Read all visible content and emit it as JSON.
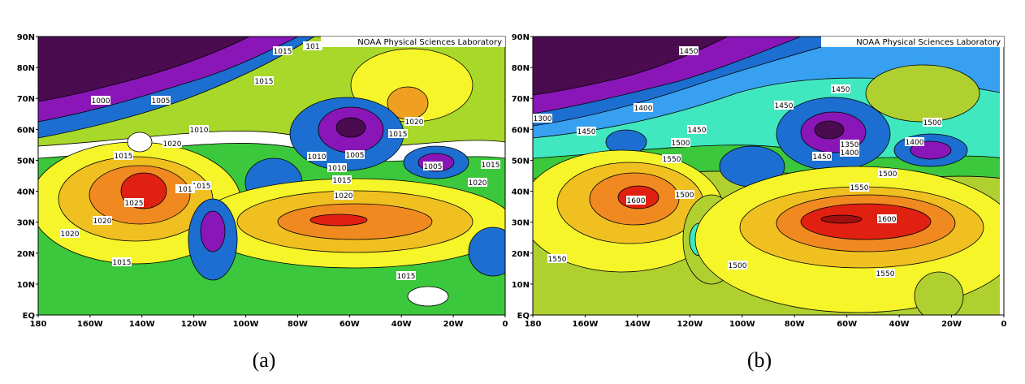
{
  "panels": [
    {
      "caption": "(a)",
      "credit": "NOAA Physical Sciences Laboratory",
      "lat_labels": [
        "90N",
        "80N",
        "70N",
        "60N",
        "50N",
        "40N",
        "30N",
        "20N",
        "10N",
        "EQ"
      ],
      "lon_labels": [
        "180",
        "160W",
        "140W",
        "120W",
        "100W",
        "80W",
        "60W",
        "40W",
        "20W",
        "0"
      ],
      "contour_labels": [
        "1015",
        "101",
        "1015",
        "1000",
        "1005",
        "1020",
        "1010",
        "1015",
        "1015",
        "1020",
        "1010",
        "1005",
        "1010",
        "1005",
        "1015",
        "1015",
        "1015",
        "101",
        "1020",
        "1020",
        "1025",
        "1020",
        "1020",
        "1015",
        "1015"
      ]
    },
    {
      "caption": "(b)",
      "credit": "NOAA Physical Sciences Laboratory",
      "lat_labels": [
        "90N",
        "80N",
        "70N",
        "60N",
        "50N",
        "40N",
        "30N",
        "20N",
        "10N",
        "EQ"
      ],
      "lon_labels": [
        "180",
        "160W",
        "140W",
        "120W",
        "100W",
        "80W",
        "60W",
        "40W",
        "20W",
        "0"
      ],
      "contour_labels": [
        "1450",
        "1450",
        "1400",
        "1450",
        "1300",
        "1450",
        "1450",
        "1500",
        "1500",
        "1350",
        "1400",
        "1400",
        "1550",
        "1450",
        "1500",
        "1550",
        "1600",
        "1500",
        "1600",
        "1550",
        "1500",
        "1550"
      ]
    }
  ]
}
